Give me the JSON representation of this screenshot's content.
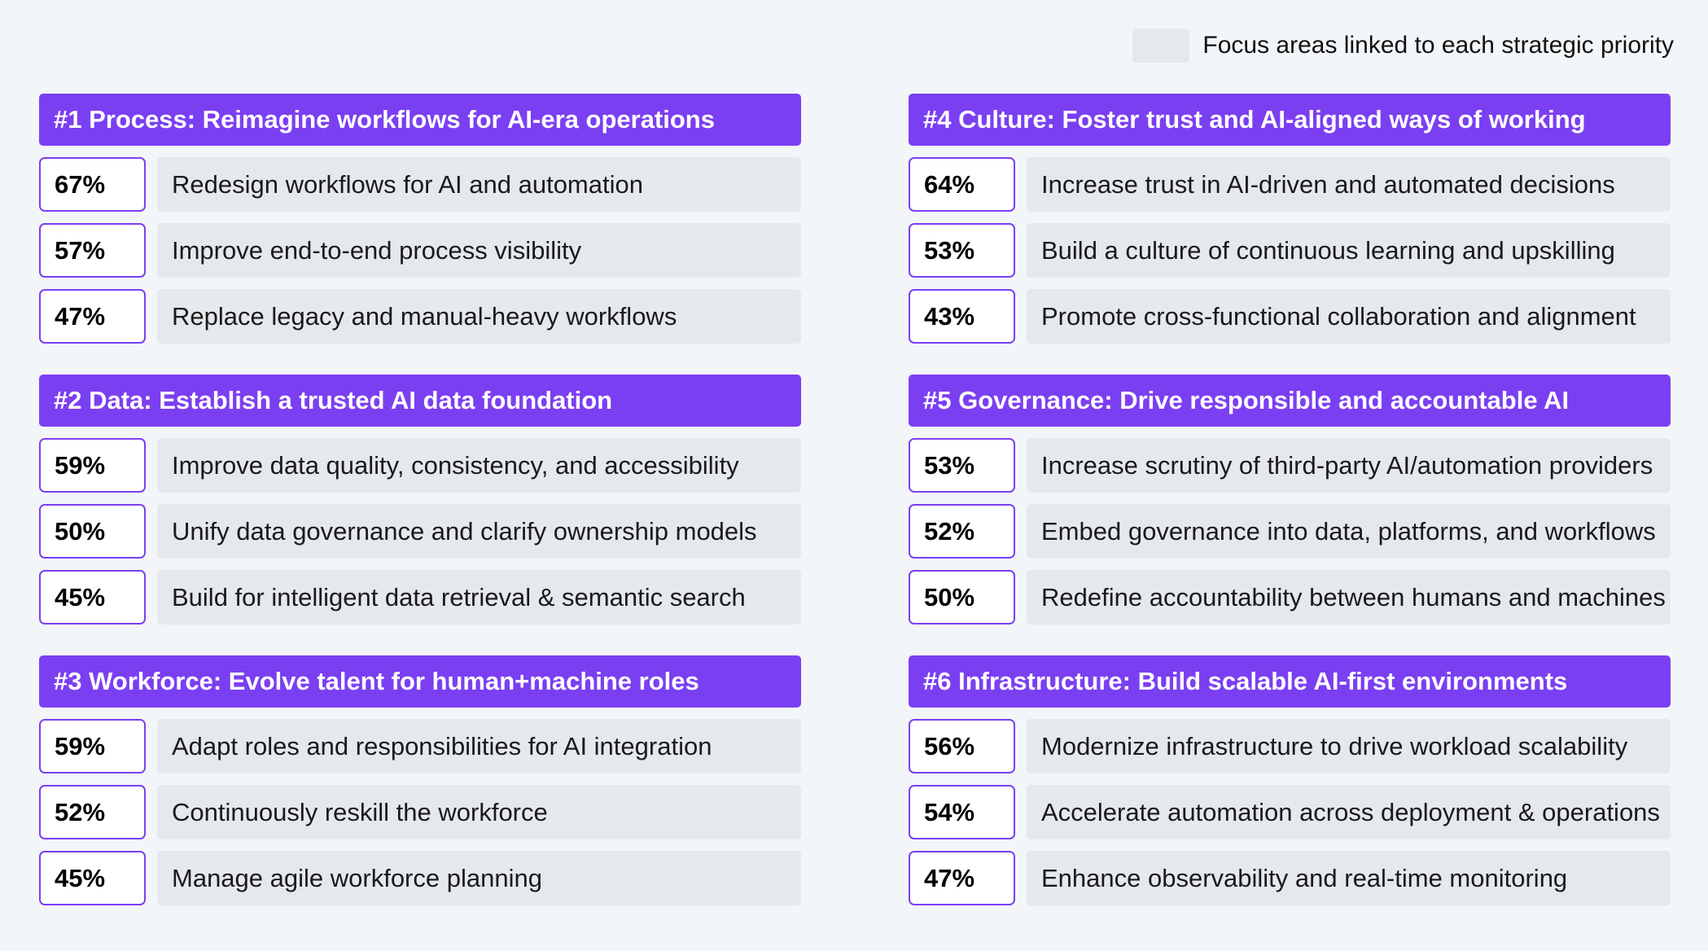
{
  "legend": {
    "label": "Focus areas linked to each strategic priority",
    "swatch_color": "#e5e8ec"
  },
  "colors": {
    "accent": "#7b3ff2",
    "item_bg": "#e5e8ec",
    "page_bg": "#f3f6f9"
  },
  "chart_data": {
    "type": "table",
    "sections": [
      {
        "title": "#1 Process: Reimagine workflows for AI-era operations",
        "items": [
          {
            "value": "67%",
            "label": "Redesign workflows for AI and automation"
          },
          {
            "value": "57%",
            "label": "Improve end-to-end process visibility"
          },
          {
            "value": "47%",
            "label": "Replace legacy and manual-heavy workflows"
          }
        ]
      },
      {
        "title": "#4 Culture: Foster trust and AI-aligned ways of working",
        "items": [
          {
            "value": "64%",
            "label": "Increase trust in AI-driven and automated decisions"
          },
          {
            "value": "53%",
            "label": "Build a culture of continuous learning and upskilling"
          },
          {
            "value": "43%",
            "label": "Promote cross-functional collaboration and alignment"
          }
        ]
      },
      {
        "title": "#2 Data: Establish a trusted AI data foundation",
        "items": [
          {
            "value": "59%",
            "label": "Improve data quality, consistency, and accessibility"
          },
          {
            "value": "50%",
            "label": "Unify data governance and clarify ownership models"
          },
          {
            "value": "45%",
            "label": "Build for intelligent data retrieval & semantic search"
          }
        ]
      },
      {
        "title": "#5 Governance: Drive responsible and accountable AI",
        "items": [
          {
            "value": "53%",
            "label": "Increase scrutiny of third-party AI/automation providers"
          },
          {
            "value": "52%",
            "label": "Embed governance into data, platforms, and workflows"
          },
          {
            "value": "50%",
            "label": "Redefine accountability between humans and machines"
          }
        ]
      },
      {
        "title": "#3 Workforce: Evolve talent for human+machine roles",
        "items": [
          {
            "value": "59%",
            "label": "Adapt roles and responsibilities for AI integration"
          },
          {
            "value": "52%",
            "label": "Continuously reskill the workforce"
          },
          {
            "value": "45%",
            "label": "Manage agile workforce planning"
          }
        ]
      },
      {
        "title": "#6 Infrastructure: Build scalable AI-first environments",
        "items": [
          {
            "value": "56%",
            "label": "Modernize infrastructure to drive workload scalability"
          },
          {
            "value": "54%",
            "label": "Accelerate automation across deployment & operations"
          },
          {
            "value": "47%",
            "label": "Enhance observability and real-time monitoring"
          }
        ]
      }
    ]
  }
}
